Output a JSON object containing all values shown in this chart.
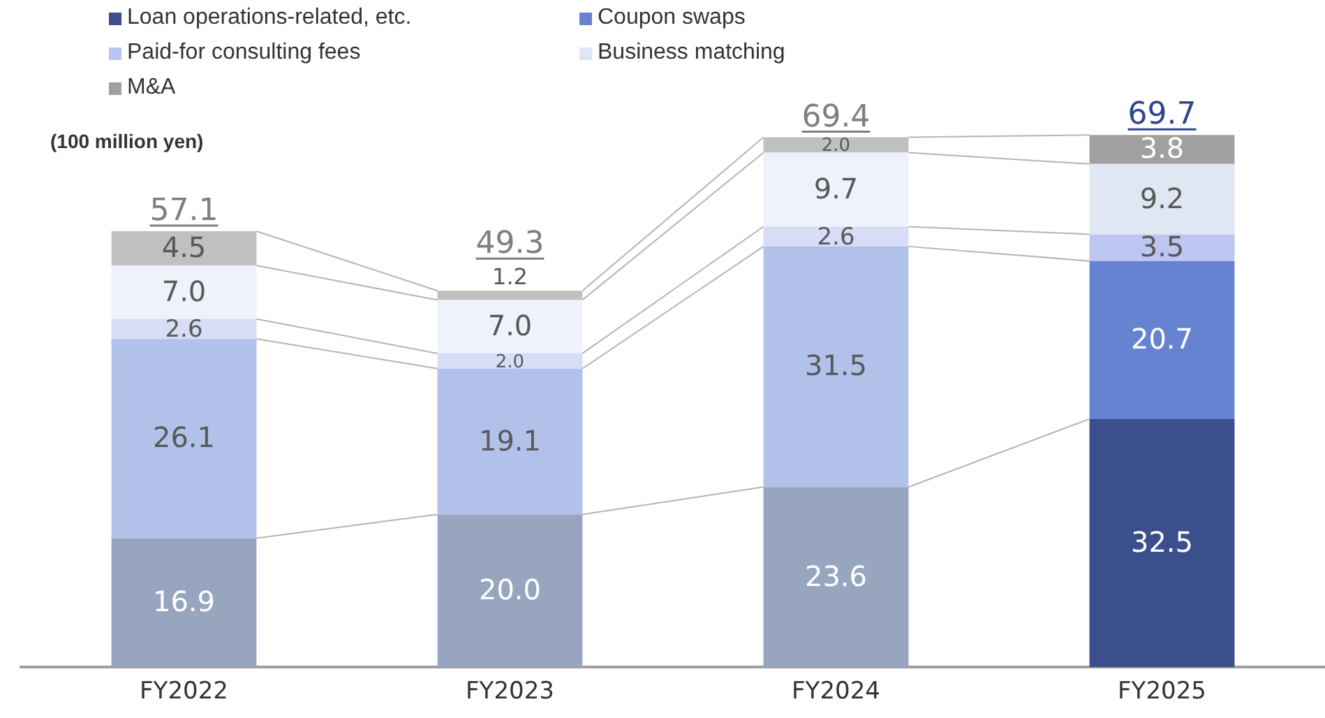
{
  "chart_data": {
    "type": "bar",
    "stacked": true,
    "ylabel": "(100 million yen)",
    "categories": [
      "FY2022",
      "FY2023",
      "FY2024",
      "FY2025"
    ],
    "series": [
      {
        "name": "Loan operations-related, etc.",
        "color": "#3b4f8c",
        "colors": [
          "#98a5bf",
          "#98a5bf",
          "#98a5bf",
          "#3b4f8c"
        ],
        "values": [
          16.9,
          20.0,
          23.6,
          32.5
        ],
        "value_labels": [
          "16.9",
          "20.0",
          "23.6",
          "32.5"
        ]
      },
      {
        "name": "Coupon swaps",
        "color": "#6683d1",
        "colors": [
          "#b2c1e9",
          "#b2c1e9",
          "#b2c1e9",
          "#6683d1"
        ],
        "values": [
          26.1,
          19.1,
          31.5,
          20.7
        ],
        "value_labels": [
          "26.1",
          "19.1",
          "31.5",
          "20.7"
        ]
      },
      {
        "name": "Paid-for consulting fees",
        "color": "#b9c5f0",
        "colors": [
          "#d6ddf4",
          "#d6ddf4",
          "#d6ddf4",
          "#bcc6f0"
        ],
        "values": [
          2.6,
          2.0,
          2.6,
          3.5
        ],
        "value_labels": [
          "2.6",
          "2.0",
          "2.6",
          "3.5"
        ]
      },
      {
        "name": "Business matching",
        "color": "#dde6f3",
        "colors": [
          "#eef2fa",
          "#eef2fa",
          "#eef2fa",
          "#dfe7f3"
        ],
        "values": [
          7.0,
          7.0,
          9.7,
          9.2
        ],
        "value_labels": [
          "7.0",
          "7.0",
          "9.7",
          "9.2"
        ]
      },
      {
        "name": "M&A",
        "color": "#a0a0a0",
        "colors": [
          "#c0c0c0",
          "#c0c0c0",
          "#c0c0c0",
          "#a0a0a0"
        ],
        "values": [
          4.5,
          1.2,
          2.0,
          3.8
        ],
        "value_labels": [
          "4.5",
          "1.2",
          "2.0",
          "3.8"
        ]
      }
    ],
    "totals": [
      "57.1",
      "49.3",
      "69.4",
      "69.7"
    ],
    "legend": "top left",
    "grid": false
  }
}
